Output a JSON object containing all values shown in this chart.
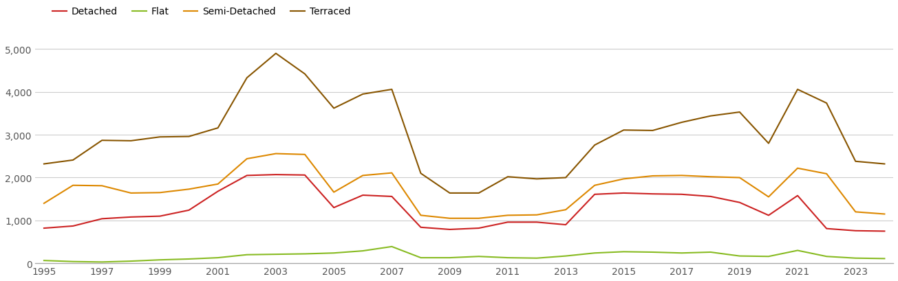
{
  "years": [
    1995,
    1996,
    1997,
    1998,
    1999,
    2000,
    2001,
    2002,
    2003,
    2004,
    2005,
    2006,
    2007,
    2008,
    2009,
    2010,
    2011,
    2012,
    2013,
    2014,
    2015,
    2016,
    2017,
    2018,
    2019,
    2020,
    2021,
    2022,
    2023,
    2024
  ],
  "detached": [
    820,
    870,
    1040,
    1080,
    1100,
    1240,
    1680,
    2050,
    2070,
    2060,
    1300,
    1590,
    1560,
    840,
    790,
    820,
    960,
    960,
    900,
    1610,
    1640,
    1620,
    1610,
    1560,
    1420,
    1120,
    1580,
    810,
    760,
    750
  ],
  "flat": [
    65,
    40,
    30,
    50,
    80,
    100,
    130,
    200,
    210,
    220,
    240,
    290,
    390,
    130,
    130,
    160,
    130,
    120,
    170,
    240,
    270,
    260,
    240,
    260,
    170,
    160,
    300,
    160,
    120,
    110
  ],
  "semi_detached": [
    1400,
    1820,
    1810,
    1640,
    1650,
    1730,
    1850,
    2440,
    2560,
    2540,
    1660,
    2050,
    2110,
    1120,
    1050,
    1050,
    1120,
    1130,
    1250,
    1820,
    1970,
    2040,
    2050,
    2020,
    2000,
    1550,
    2220,
    2090,
    1200,
    1150
  ],
  "terraced": [
    2320,
    2410,
    2870,
    2860,
    2950,
    2960,
    3160,
    4330,
    4900,
    4420,
    3620,
    3950,
    4060,
    2100,
    1640,
    1640,
    2020,
    1970,
    2000,
    2760,
    3110,
    3100,
    3290,
    3440,
    3530,
    2800,
    4060,
    3740,
    2380,
    2320
  ],
  "colors": {
    "detached": "#cc2222",
    "flat": "#88bb22",
    "semi_detached": "#dd8800",
    "terraced": "#885500"
  },
  "ylim": [
    0,
    5250
  ],
  "yticks": [
    0,
    1000,
    2000,
    3000,
    4000,
    5000
  ],
  "ylabel_labels": [
    "0",
    "1,000",
    "2,000",
    "3,000",
    "4,000",
    "5,000"
  ],
  "legend_labels": [
    "Detached",
    "Flat",
    "Semi-Detached",
    "Terraced"
  ],
  "background_color": "#ffffff",
  "grid_color": "#cccccc",
  "line_width": 1.5,
  "x_tick_start": 1995,
  "x_tick_end": 2024,
  "x_tick_step": 2
}
